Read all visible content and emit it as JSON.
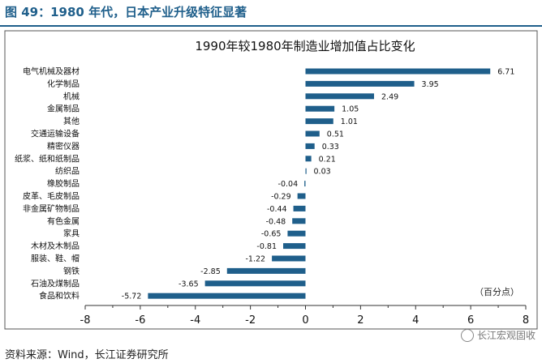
{
  "header": {
    "figure_title": "图 49：1980 年代，日本产业升级特征显著"
  },
  "footer": {
    "source": "资料来源：Wind，长江证券研究所",
    "watermark": "长江宏观固收"
  },
  "colors": {
    "accent": "#1f5f8b",
    "bar": "#1f5f8b"
  },
  "chart_data": {
    "type": "bar",
    "orientation": "horizontal",
    "title": "1990年较1980年制造业增加值占比变化",
    "unit_note": "（百分点）",
    "xlim": [
      -8,
      8
    ],
    "xticks": [
      -8,
      -6,
      -4,
      -2,
      0,
      2,
      4,
      6,
      8
    ],
    "grid": false,
    "categories": [
      "电气机械及器材",
      "化学制品",
      "机械",
      "金属制品",
      "其他",
      "交通运输设备",
      "精密仪器",
      "纸浆、纸和纸制品",
      "纺织品",
      "橡胶制品",
      "皮革、毛皮制品",
      "非金属矿物制品",
      "有色金属",
      "家具",
      "木材及木制品",
      "服装、鞋、帽",
      "钢铁",
      "石油及煤制品",
      "食品和饮料"
    ],
    "values": [
      6.71,
      3.95,
      2.49,
      1.05,
      1.01,
      0.51,
      0.33,
      0.21,
      0.03,
      -0.04,
      -0.29,
      -0.44,
      -0.48,
      -0.65,
      -0.81,
      -1.22,
      -2.85,
      -3.65,
      -5.72
    ],
    "labels": [
      "6.71",
      "3.95",
      "2.49",
      "1.05",
      "1.01",
      "0.51",
      "0.33",
      "0.21",
      "0.03",
      "-0.04",
      "-0.29",
      "-0.44",
      "-0.48",
      "-0.65",
      "-0.81",
      "-1.22",
      "-2.85",
      "-3.65",
      "-5.72"
    ]
  }
}
